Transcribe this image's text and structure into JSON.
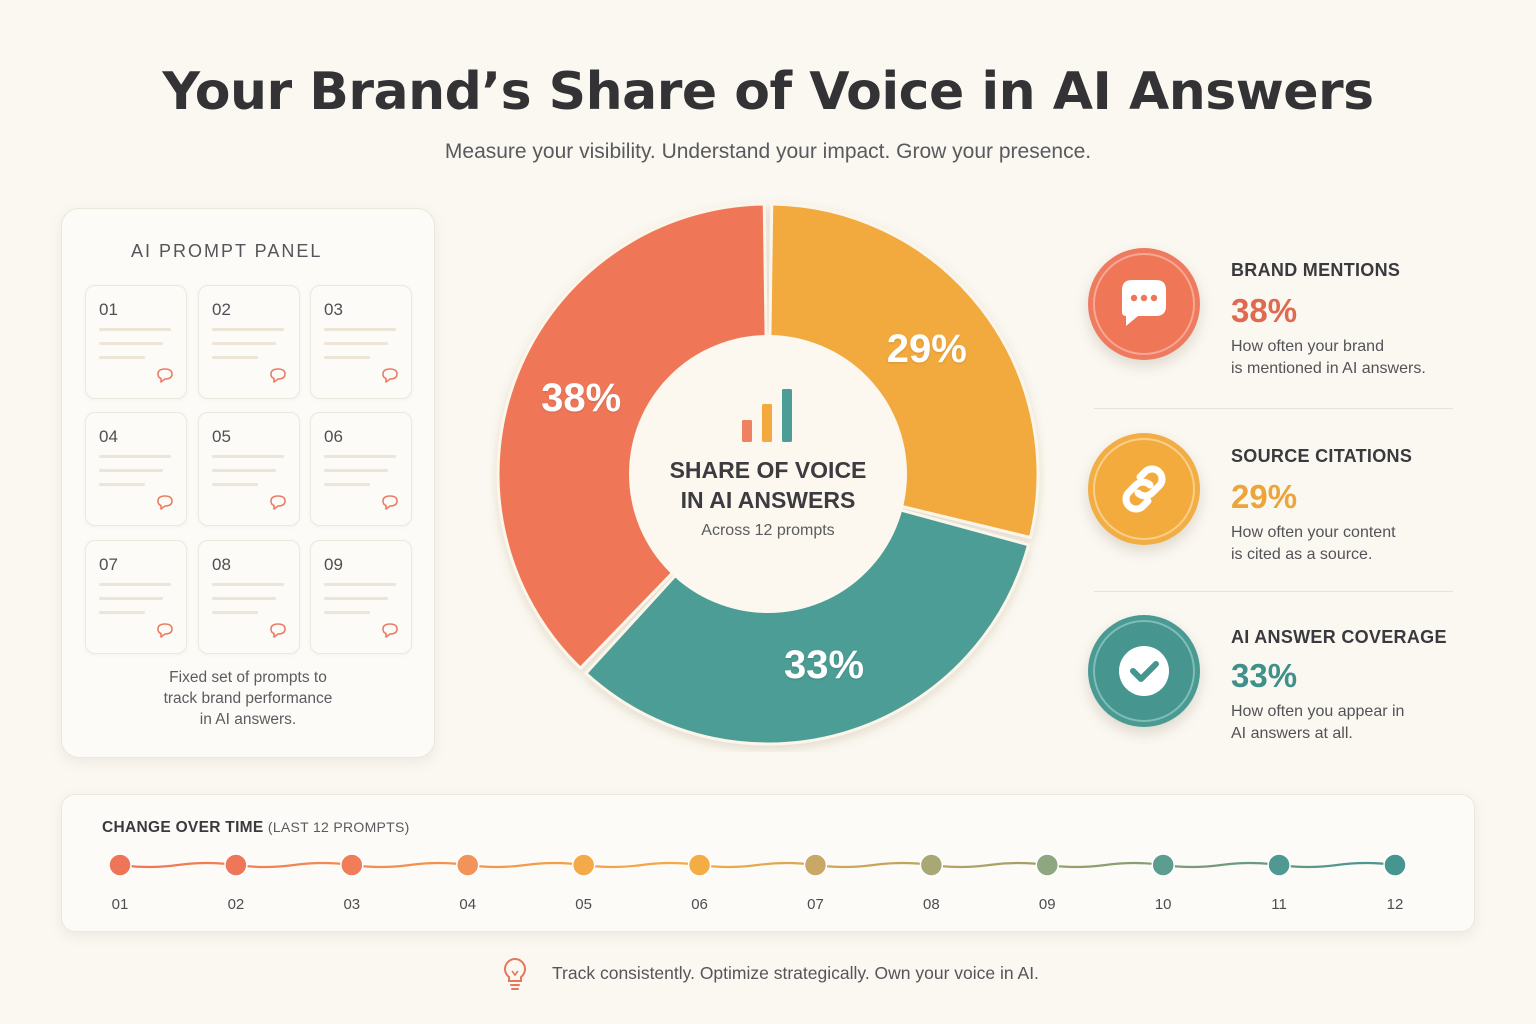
{
  "header": {
    "title": "Your Brand’s Share of Voice in AI Answers",
    "subtitle": "Measure your visibility. Understand your impact. Grow your presence."
  },
  "prompt_panel": {
    "title": "AI PROMPT PANEL",
    "cards": [
      "01",
      "02",
      "03",
      "04",
      "05",
      "06",
      "07",
      "08",
      "09"
    ],
    "footer": [
      "Fixed set of prompts to",
      "track brand performance",
      "in AI answers."
    ]
  },
  "donut_center": {
    "line1": "SHARE OF VOICE",
    "line2": "IN AI ANSWERS",
    "caption": "Across 12 prompts"
  },
  "metrics": [
    {
      "title": "BRAND MENTIONS",
      "value": "38%",
      "desc": [
        "How often your brand",
        "is mentioned in AI answers."
      ],
      "color": "#e8715a",
      "icon": "chat-bubble-icon"
    },
    {
      "title": "SOURCE CITATIONS",
      "value": "29%",
      "desc": [
        "How often your content",
        "is cited as a source."
      ],
      "color": "#f0a93a",
      "icon": "link-icon"
    },
    {
      "title": "AI ANSWER COVERAGE",
      "value": "33%",
      "desc": [
        "How often you appear in",
        "AI answers at all."
      ],
      "color": "#3f9490",
      "icon": "checkmark-icon"
    }
  ],
  "timeline": {
    "title": "CHANGE OVER TIME",
    "title_suffix": "(LAST 12 PROMPTS)",
    "labels": [
      "01",
      "02",
      "03",
      "04",
      "05",
      "06",
      "07",
      "08",
      "09",
      "10",
      "11",
      "12"
    ],
    "colors": [
      "#ef7559",
      "#ef7759",
      "#f07d57",
      "#f2935a",
      "#f5aa4a",
      "#f3ad44",
      "#c8a864",
      "#a9a874",
      "#8ea781",
      "#5d9d8f",
      "#4f9992",
      "#469590"
    ]
  },
  "footer": {
    "text": "Track consistently. Optimize strategically. Own your voice in AI."
  },
  "chart_data": {
    "type": "pie",
    "title": "SHARE OF VOICE IN AI ANSWERS",
    "categories": [
      "Brand Mentions",
      "Source Citations",
      "AI Answer Coverage"
    ],
    "values": [
      38,
      29,
      33
    ],
    "labels": [
      "38%",
      "29%",
      "33%"
    ],
    "colors": [
      "#ef7759",
      "#f2a93e",
      "#4b9d95"
    ]
  }
}
